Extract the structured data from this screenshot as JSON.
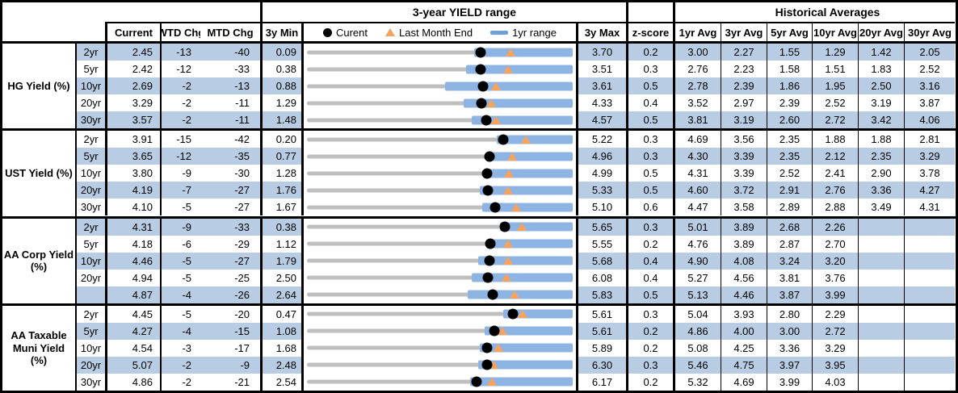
{
  "chart_data": {
    "type": "table",
    "section_titles": {
      "chart": "3-year YIELD range",
      "historical": "Historical Averages"
    },
    "legend": [
      {
        "marker": "black-dot",
        "label": "Curent"
      },
      {
        "marker": "orange-triangle",
        "label": "Last Month End"
      },
      {
        "marker": "blue-bar",
        "label": "1yr range"
      }
    ],
    "columns": {
      "current": "Current",
      "wtd": "WTD Chg",
      "mtd": "MTD Chg",
      "min3y": "3y Min",
      "max3y": "3y Max",
      "zscore": "z-score",
      "avg1yr": "1yr Avg",
      "avg3yr": "3yr Avg",
      "avg5yr": "5yr Avg",
      "avg10yr": "10yr Avg",
      "avg20yr": "20yr Avg",
      "avg30yr": "30yr Avg"
    },
    "colors": {
      "stripe": "#B8CCE4",
      "range_bar_1yr": "#8EB4E3",
      "track_3y": "#BFBFBF",
      "marker_current": "#000000",
      "marker_last_month": "#F9A25C",
      "legend_bar": "#6E9FD9"
    },
    "groups": [
      {
        "label": "HG Yield (%)",
        "rows": [
          {
            "tenor": "2yr",
            "current": "2.45",
            "wtd": "-13",
            "mtd": "-40",
            "min": "0.09",
            "max": "3.70",
            "z": "0.2",
            "avgs": [
              "3.00",
              "2.27",
              "1.55",
              "1.29",
              "1.42",
              "2.05"
            ],
            "marker": {
              "lo": 0.63,
              "dot": 0.654,
              "tri": 0.765
            }
          },
          {
            "tenor": "5yr",
            "current": "2.42",
            "wtd": "-12",
            "mtd": "-33",
            "min": "0.38",
            "max": "3.51",
            "z": "0.3",
            "avgs": [
              "2.76",
              "2.23",
              "1.58",
              "1.51",
              "1.83",
              "2.52"
            ],
            "marker": {
              "lo": 0.6,
              "dot": 0.652,
              "tri": 0.757
            }
          },
          {
            "tenor": "10yr",
            "current": "2.69",
            "wtd": "-2",
            "mtd": "-13",
            "min": "0.88",
            "max": "3.61",
            "z": "0.5",
            "avgs": [
              "2.78",
              "2.39",
              "1.86",
              "1.95",
              "2.50",
              "3.16"
            ],
            "marker": {
              "lo": 0.52,
              "dot": 0.663,
              "tri": 0.711
            }
          },
          {
            "tenor": "20yr",
            "current": "3.29",
            "wtd": "-2",
            "mtd": "-11",
            "min": "1.29",
            "max": "4.33",
            "z": "0.4",
            "avgs": [
              "3.52",
              "2.97",
              "2.39",
              "2.52",
              "3.19",
              "3.87"
            ],
            "marker": {
              "lo": 0.59,
              "dot": 0.658,
              "tri": 0.694
            }
          },
          {
            "tenor": "30yr",
            "current": "3.57",
            "wtd": "-2",
            "mtd": "-11",
            "min": "1.48",
            "max": "4.57",
            "z": "0.5",
            "avgs": [
              "3.81",
              "3.19",
              "2.60",
              "2.72",
              "3.42",
              "4.06"
            ],
            "marker": {
              "lo": 0.62,
              "dot": 0.676,
              "tri": 0.712
            }
          }
        ]
      },
      {
        "label": "UST Yield (%)",
        "rows": [
          {
            "tenor": "2yr",
            "current": "3.91",
            "wtd": "-15",
            "mtd": "-42",
            "min": "0.20",
            "max": "5.22",
            "z": "0.3",
            "avgs": [
              "4.69",
              "3.56",
              "2.35",
              "1.88",
              "1.88",
              "2.81"
            ],
            "marker": {
              "lo": 0.715,
              "dot": 0.739,
              "tri": 0.823
            }
          },
          {
            "tenor": "5yr",
            "current": "3.65",
            "wtd": "-12",
            "mtd": "-35",
            "min": "0.77",
            "max": "4.96",
            "z": "0.3",
            "avgs": [
              "4.30",
              "3.39",
              "2.35",
              "2.12",
              "2.35",
              "3.29"
            ],
            "marker": {
              "lo": 0.675,
              "dot": 0.687,
              "tri": 0.771
            }
          },
          {
            "tenor": "10yr",
            "current": "3.80",
            "wtd": "-9",
            "mtd": "-30",
            "min": "1.28",
            "max": "4.99",
            "z": "0.5",
            "avgs": [
              "4.31",
              "3.39",
              "2.52",
              "2.41",
              "2.90",
              "3.78"
            ],
            "marker": {
              "lo": 0.665,
              "dot": 0.679,
              "tri": 0.76
            }
          },
          {
            "tenor": "20yr",
            "current": "4.19",
            "wtd": "-7",
            "mtd": "-27",
            "min": "1.76",
            "max": "5.33",
            "z": "0.5",
            "avgs": [
              "4.60",
              "3.72",
              "2.91",
              "2.76",
              "3.36",
              "4.27"
            ],
            "marker": {
              "lo": 0.65,
              "dot": 0.681,
              "tri": 0.756
            }
          },
          {
            "tenor": "30yr",
            "current": "4.10",
            "wtd": "-5",
            "mtd": "-27",
            "min": "1.67",
            "max": "5.10",
            "z": "0.6",
            "avgs": [
              "4.47",
              "3.58",
              "2.89",
              "2.88",
              "3.49",
              "4.31"
            ],
            "marker": {
              "lo": 0.66,
              "dot": 0.708,
              "tri": 0.787
            }
          }
        ]
      },
      {
        "label": "AA Corp Yield (%)",
        "rows": [
          {
            "tenor": "2yr",
            "current": "4.31",
            "wtd": "-9",
            "mtd": "-33",
            "min": "0.38",
            "max": "5.65",
            "z": "0.3",
            "avgs": [
              "5.01",
              "3.89",
              "2.68",
              "2.26",
              "",
              ""
            ],
            "marker": {
              "lo": 0.725,
              "dot": 0.746,
              "tri": 0.808
            }
          },
          {
            "tenor": "5yr",
            "current": "4.18",
            "wtd": "-6",
            "mtd": "-29",
            "min": "1.12",
            "max": "5.55",
            "z": "0.2",
            "avgs": [
              "4.76",
              "3.89",
              "2.87",
              "2.70",
              "",
              ""
            ],
            "marker": {
              "lo": 0.675,
              "dot": 0.691,
              "tri": 0.756
            }
          },
          {
            "tenor": "10yr",
            "current": "4.46",
            "wtd": "-5",
            "mtd": "-27",
            "min": "1.79",
            "max": "5.68",
            "z": "0.4",
            "avgs": [
              "4.90",
              "4.08",
              "3.24",
              "3.20",
              "",
              ""
            ],
            "marker": {
              "lo": 0.645,
              "dot": 0.686,
              "tri": 0.756
            }
          },
          {
            "tenor": "20yr",
            "current": "4.94",
            "wtd": "-5",
            "mtd": "-25",
            "min": "2.50",
            "max": "6.08",
            "z": "0.4",
            "avgs": [
              "5.27",
              "4.56",
              "3.81",
              "3.76",
              "",
              ""
            ],
            "marker": {
              "lo": 0.62,
              "dot": 0.682,
              "tri": 0.751
            }
          },
          {
            "tenor": "",
            "current": "4.87",
            "wtd": "-4",
            "mtd": "-26",
            "min": "2.64",
            "max": "5.83",
            "z": "0.5",
            "avgs": [
              "5.13",
              "4.46",
              "3.87",
              "3.99",
              "",
              ""
            ],
            "marker": {
              "lo": 0.605,
              "dot": 0.699,
              "tri": 0.781
            }
          }
        ]
      },
      {
        "label": "AA Taxable Muni Yield (%)",
        "rows": [
          {
            "tenor": "2yr",
            "current": "4.45",
            "wtd": "-5",
            "mtd": "-20",
            "min": "0.47",
            "max": "5.61",
            "z": "0.3",
            "avgs": [
              "5.04",
              "3.93",
              "2.80",
              "2.29",
              "",
              ""
            ],
            "marker": {
              "lo": 0.74,
              "dot": 0.774,
              "tri": 0.813
            }
          },
          {
            "tenor": "5yr",
            "current": "4.27",
            "wtd": "-4",
            "mtd": "-15",
            "min": "1.08",
            "max": "5.61",
            "z": "0.2",
            "avgs": [
              "4.86",
              "4.00",
              "3.00",
              "2.72",
              "",
              ""
            ],
            "marker": {
              "lo": 0.67,
              "dot": 0.704,
              "tri": 0.737
            }
          },
          {
            "tenor": "10yr",
            "current": "4.54",
            "wtd": "-3",
            "mtd": "-17",
            "min": "1.68",
            "max": "5.89",
            "z": "0.2",
            "avgs": [
              "5.08",
              "4.25",
              "3.36",
              "3.29",
              "",
              ""
            ],
            "marker": {
              "lo": 0.65,
              "dot": 0.679,
              "tri": 0.72
            }
          },
          {
            "tenor": "20yr",
            "current": "5.07",
            "wtd": "-2",
            "mtd": "-9",
            "min": "2.48",
            "max": "6.30",
            "z": "0.3",
            "avgs": [
              "5.46",
              "4.75",
              "3.97",
              "3.95",
              "",
              ""
            ],
            "marker": {
              "lo": 0.645,
              "dot": 0.678,
              "tri": 0.702
            }
          },
          {
            "tenor": "30yr",
            "current": "4.86",
            "wtd": "-2",
            "mtd": "-21",
            "min": "2.54",
            "max": "6.17",
            "z": "0.2",
            "avgs": [
              "5.32",
              "4.69",
              "3.99",
              "4.03",
              "",
              ""
            ],
            "marker": {
              "lo": 0.615,
              "dot": 0.639,
              "tri": 0.697
            }
          }
        ]
      }
    ]
  }
}
